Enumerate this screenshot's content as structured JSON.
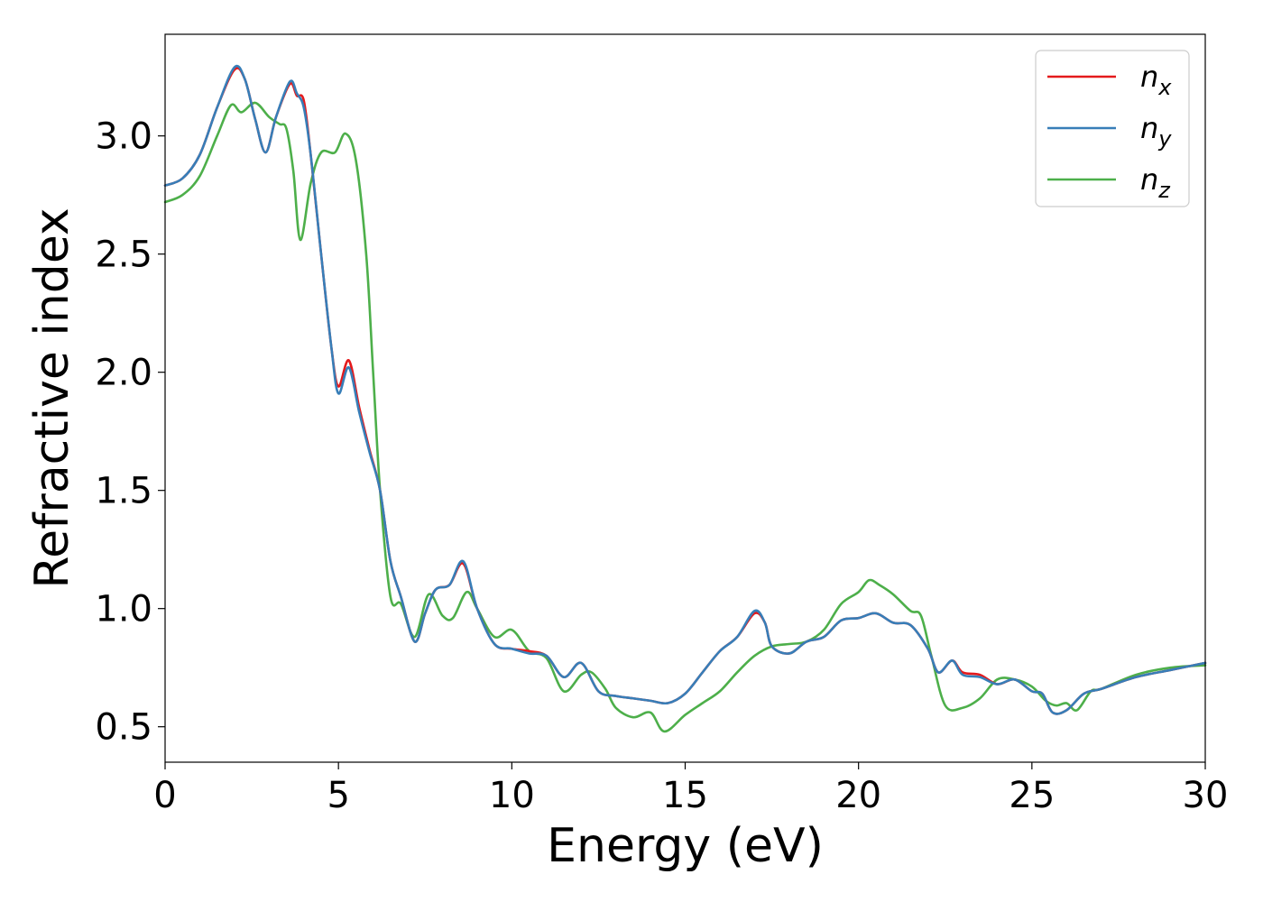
{
  "chart_data": {
    "type": "line",
    "title": "",
    "xlabel": "Energy (eV)",
    "ylabel": "Refractive index",
    "xlim": [
      0,
      30
    ],
    "ylim": [
      0.35,
      3.43
    ],
    "xticks": [
      0,
      5,
      10,
      15,
      20,
      25,
      30
    ],
    "yticks": [
      0.5,
      1.0,
      1.5,
      2.0,
      2.5,
      3.0
    ],
    "xtick_labels": [
      "0",
      "5",
      "10",
      "15",
      "20",
      "25",
      "30"
    ],
    "ytick_labels": [
      "0.5",
      "1.0",
      "1.5",
      "2.0",
      "2.5",
      "3.0"
    ],
    "grid": false,
    "legend_position": "top-right",
    "series": [
      {
        "name": "n_x",
        "legend_main": "n",
        "legend_sub": "x",
        "color": "#e41a1c",
        "points": [
          [
            0,
            2.79
          ],
          [
            0.5,
            2.82
          ],
          [
            1,
            2.92
          ],
          [
            1.5,
            3.12
          ],
          [
            2,
            3.28
          ],
          [
            2.3,
            3.24
          ],
          [
            2.6,
            3.07
          ],
          [
            2.9,
            2.93
          ],
          [
            3.2,
            3.08
          ],
          [
            3.6,
            3.22
          ],
          [
            3.8,
            3.17
          ],
          [
            4.0,
            3.15
          ],
          [
            4.2,
            2.92
          ],
          [
            4.5,
            2.5
          ],
          [
            4.8,
            2.1
          ],
          [
            5.0,
            1.94
          ],
          [
            5.3,
            2.05
          ],
          [
            5.6,
            1.85
          ],
          [
            5.9,
            1.67
          ],
          [
            6.2,
            1.5
          ],
          [
            6.5,
            1.2
          ],
          [
            6.8,
            1.05
          ],
          [
            7.2,
            0.86
          ],
          [
            7.5,
            0.98
          ],
          [
            7.8,
            1.08
          ],
          [
            8.2,
            1.1
          ],
          [
            8.6,
            1.19
          ],
          [
            9.0,
            1.0
          ],
          [
            9.5,
            0.85
          ],
          [
            10,
            0.83
          ],
          [
            10.5,
            0.82
          ],
          [
            11,
            0.8
          ],
          [
            11.5,
            0.71
          ],
          [
            12,
            0.77
          ],
          [
            12.5,
            0.65
          ],
          [
            13,
            0.63
          ],
          [
            13.5,
            0.62
          ],
          [
            14,
            0.61
          ],
          [
            14.5,
            0.6
          ],
          [
            15,
            0.64
          ],
          [
            15.5,
            0.73
          ],
          [
            16,
            0.82
          ],
          [
            16.5,
            0.88
          ],
          [
            17,
            0.98
          ],
          [
            17.3,
            0.94
          ],
          [
            17.5,
            0.84
          ],
          [
            18,
            0.81
          ],
          [
            18.5,
            0.86
          ],
          [
            19,
            0.88
          ],
          [
            19.5,
            0.95
          ],
          [
            20,
            0.96
          ],
          [
            20.5,
            0.98
          ],
          [
            21,
            0.94
          ],
          [
            21.5,
            0.93
          ],
          [
            22,
            0.83
          ],
          [
            22.3,
            0.73
          ],
          [
            22.7,
            0.78
          ],
          [
            23,
            0.73
          ],
          [
            23.5,
            0.72
          ],
          [
            24,
            0.68
          ],
          [
            24.5,
            0.7
          ],
          [
            25,
            0.65
          ],
          [
            25.3,
            0.64
          ],
          [
            25.6,
            0.56
          ],
          [
            26,
            0.57
          ],
          [
            26.5,
            0.64
          ],
          [
            27,
            0.66
          ],
          [
            28,
            0.71
          ],
          [
            29,
            0.74
          ],
          [
            30,
            0.77
          ]
        ]
      },
      {
        "name": "n_y",
        "legend_main": "n",
        "legend_sub": "y",
        "color": "#377eb8",
        "points": [
          [
            0,
            2.79
          ],
          [
            0.5,
            2.82
          ],
          [
            1,
            2.92
          ],
          [
            1.5,
            3.12
          ],
          [
            2,
            3.29
          ],
          [
            2.3,
            3.24
          ],
          [
            2.6,
            3.07
          ],
          [
            2.9,
            2.93
          ],
          [
            3.2,
            3.08
          ],
          [
            3.6,
            3.23
          ],
          [
            3.8,
            3.18
          ],
          [
            4.0,
            3.12
          ],
          [
            4.2,
            2.92
          ],
          [
            4.5,
            2.5
          ],
          [
            4.8,
            2.1
          ],
          [
            5.0,
            1.91
          ],
          [
            5.3,
            2.02
          ],
          [
            5.6,
            1.83
          ],
          [
            5.9,
            1.66
          ],
          [
            6.2,
            1.5
          ],
          [
            6.5,
            1.2
          ],
          [
            6.8,
            1.05
          ],
          [
            7.2,
            0.86
          ],
          [
            7.5,
            0.98
          ],
          [
            7.8,
            1.08
          ],
          [
            8.2,
            1.1
          ],
          [
            8.6,
            1.2
          ],
          [
            9.0,
            1.0
          ],
          [
            9.5,
            0.85
          ],
          [
            10,
            0.83
          ],
          [
            10.5,
            0.81
          ],
          [
            11,
            0.8
          ],
          [
            11.5,
            0.71
          ],
          [
            12,
            0.77
          ],
          [
            12.5,
            0.65
          ],
          [
            13,
            0.63
          ],
          [
            13.5,
            0.62
          ],
          [
            14,
            0.61
          ],
          [
            14.5,
            0.6
          ],
          [
            15,
            0.64
          ],
          [
            15.5,
            0.73
          ],
          [
            16,
            0.82
          ],
          [
            16.5,
            0.88
          ],
          [
            17,
            0.99
          ],
          [
            17.3,
            0.94
          ],
          [
            17.5,
            0.84
          ],
          [
            18,
            0.81
          ],
          [
            18.5,
            0.86
          ],
          [
            19,
            0.88
          ],
          [
            19.5,
            0.95
          ],
          [
            20,
            0.96
          ],
          [
            20.5,
            0.98
          ],
          [
            21,
            0.94
          ],
          [
            21.5,
            0.93
          ],
          [
            22,
            0.83
          ],
          [
            22.3,
            0.73
          ],
          [
            22.7,
            0.78
          ],
          [
            23,
            0.72
          ],
          [
            23.5,
            0.71
          ],
          [
            24,
            0.68
          ],
          [
            24.5,
            0.7
          ],
          [
            25,
            0.65
          ],
          [
            25.3,
            0.64
          ],
          [
            25.6,
            0.56
          ],
          [
            26,
            0.57
          ],
          [
            26.5,
            0.64
          ],
          [
            27,
            0.66
          ],
          [
            28,
            0.71
          ],
          [
            29,
            0.74
          ],
          [
            30,
            0.77
          ]
        ]
      },
      {
        "name": "n_z",
        "legend_main": "n",
        "legend_sub": "z",
        "color": "#4daf4a",
        "points": [
          [
            0,
            2.72
          ],
          [
            0.5,
            2.75
          ],
          [
            1,
            2.83
          ],
          [
            1.5,
            3.0
          ],
          [
            1.9,
            3.13
          ],
          [
            2.2,
            3.1
          ],
          [
            2.6,
            3.14
          ],
          [
            3.0,
            3.08
          ],
          [
            3.3,
            3.05
          ],
          [
            3.5,
            3.03
          ],
          [
            3.7,
            2.85
          ],
          [
            3.9,
            2.56
          ],
          [
            4.2,
            2.8
          ],
          [
            4.5,
            2.93
          ],
          [
            4.9,
            2.93
          ],
          [
            5.2,
            3.01
          ],
          [
            5.5,
            2.9
          ],
          [
            5.8,
            2.5
          ],
          [
            6.0,
            2.0
          ],
          [
            6.2,
            1.5
          ],
          [
            6.5,
            1.05
          ],
          [
            6.8,
            1.02
          ],
          [
            7.2,
            0.88
          ],
          [
            7.6,
            1.06
          ],
          [
            8.0,
            0.97
          ],
          [
            8.3,
            0.96
          ],
          [
            8.7,
            1.07
          ],
          [
            9.0,
            1.0
          ],
          [
            9.5,
            0.88
          ],
          [
            10,
            0.91
          ],
          [
            10.5,
            0.82
          ],
          [
            11,
            0.79
          ],
          [
            11.5,
            0.65
          ],
          [
            12,
            0.72
          ],
          [
            12.3,
            0.73
          ],
          [
            12.7,
            0.66
          ],
          [
            13,
            0.58
          ],
          [
            13.5,
            0.54
          ],
          [
            14,
            0.56
          ],
          [
            14.4,
            0.48
          ],
          [
            15,
            0.55
          ],
          [
            15.5,
            0.6
          ],
          [
            16,
            0.65
          ],
          [
            16.5,
            0.73
          ],
          [
            17,
            0.8
          ],
          [
            17.5,
            0.84
          ],
          [
            18,
            0.85
          ],
          [
            18.5,
            0.86
          ],
          [
            19,
            0.91
          ],
          [
            19.5,
            1.02
          ],
          [
            20,
            1.07
          ],
          [
            20.3,
            1.12
          ],
          [
            20.6,
            1.1
          ],
          [
            21,
            1.06
          ],
          [
            21.5,
            0.99
          ],
          [
            21.8,
            0.97
          ],
          [
            22.1,
            0.8
          ],
          [
            22.5,
            0.59
          ],
          [
            23,
            0.58
          ],
          [
            23.5,
            0.62
          ],
          [
            24,
            0.7
          ],
          [
            24.5,
            0.7
          ],
          [
            25,
            0.67
          ],
          [
            25.4,
            0.61
          ],
          [
            25.7,
            0.59
          ],
          [
            26,
            0.6
          ],
          [
            26.3,
            0.57
          ],
          [
            26.7,
            0.65
          ],
          [
            27,
            0.66
          ],
          [
            28,
            0.72
          ],
          [
            29,
            0.75
          ],
          [
            30,
            0.76
          ]
        ]
      }
    ]
  }
}
